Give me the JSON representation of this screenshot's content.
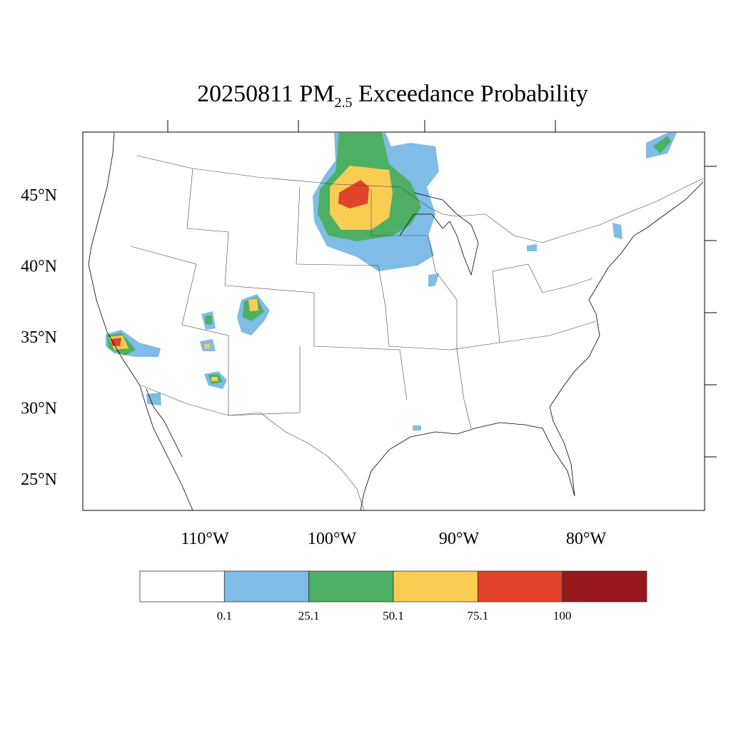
{
  "title": {
    "date": "20250811",
    "pollutant": "PM",
    "subscript": "2.5",
    "rest": "Exceedance Probability"
  },
  "map": {
    "lat_ticks": [
      {
        "value": 45,
        "label": "45°N"
      },
      {
        "value": 40,
        "label": "40°N"
      },
      {
        "value": 35,
        "label": "35°N"
      },
      {
        "value": 30,
        "label": "30°N"
      },
      {
        "value": 25,
        "label": "25°N"
      }
    ],
    "lon_ticks": [
      {
        "value": -110,
        "label": "110°W"
      },
      {
        "value": -100,
        "label": "100°W"
      },
      {
        "value": -90,
        "label": "90°W"
      },
      {
        "value": -80,
        "label": "80°W"
      }
    ]
  },
  "colorbar": {
    "colors": [
      "#ffffff",
      "#7fbce6",
      "#4caf63",
      "#f8cd52",
      "#e2432b",
      "#96181d"
    ],
    "labels": [
      0.1,
      25.1,
      50.1,
      75.1,
      100
    ]
  }
}
